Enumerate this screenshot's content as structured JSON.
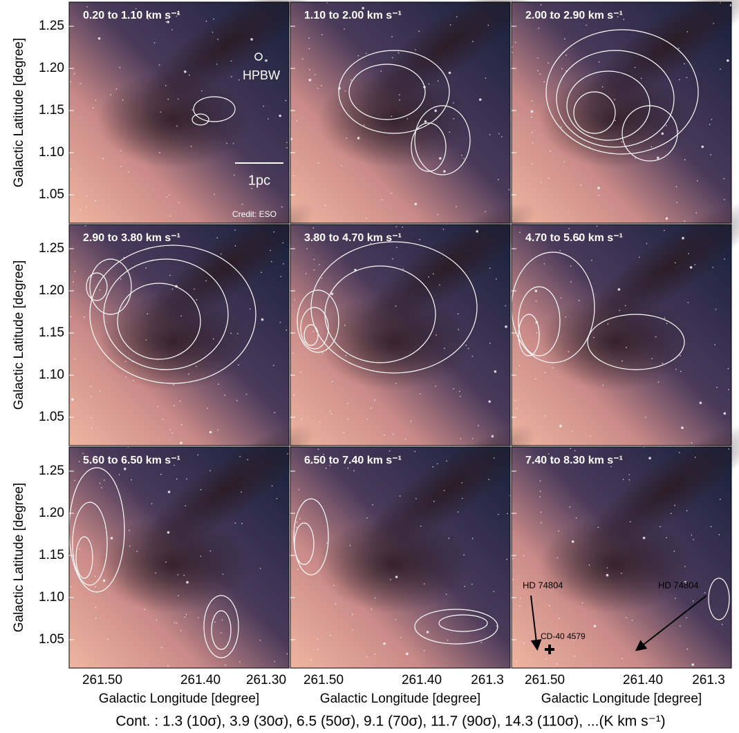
{
  "panels": [
    {
      "label": "0.20 to 1.10 km s⁻¹"
    },
    {
      "label": "1.10 to 2.00 km s⁻¹"
    },
    {
      "label": "2.00 to 2.90 km s⁻¹"
    },
    {
      "label": "2.90 to 3.80 km s⁻¹"
    },
    {
      "label": "3.80 to 4.70 km s⁻¹"
    },
    {
      "label": "4.70 to 5.60 km s⁻¹"
    },
    {
      "label": "5.60 to 6.50 km s⁻¹"
    },
    {
      "label": "6.50 to 7.40 km s⁻¹"
    },
    {
      "label": "7.40 to 8.30 km s⁻¹"
    }
  ],
  "y_axis": {
    "title": "Galactic Latitude [degree]",
    "ticks": [
      "1.25",
      "1.20",
      "1.15",
      "1.10",
      "1.05"
    ]
  },
  "x_axis": {
    "title": "Galactic Longitude [degree]",
    "ticks_by_column": [
      [
        "261.50",
        "261.40",
        "261.30"
      ],
      [
        "261.50",
        "261.40",
        "261.3"
      ],
      [
        "261.50",
        "261.40",
        "261.3"
      ]
    ]
  },
  "annotations": {
    "hpbw": "HPBW",
    "scale": "1pc",
    "credit": "Credit: ESO",
    "star_left": "HD 74804",
    "star_right": "HD 74804",
    "cd": "CD-40 4579"
  },
  "caption": "Cont. : 1.3 (10σ), 3.9 (30σ), 6.5 (50σ), 9.1 (70σ), 11.7 (90σ), 14.3 (110σ), ...(K km s⁻¹)"
}
